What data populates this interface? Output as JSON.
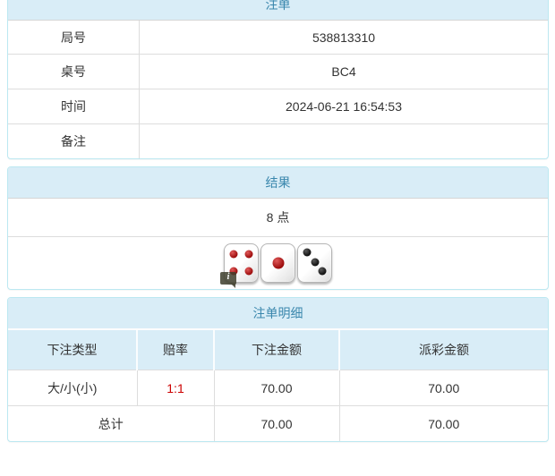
{
  "colors": {
    "heading_bg": "#d9edf7",
    "heading_text": "#3a87ad",
    "panel_border": "#bce8f1",
    "row_divider": "#dddddd",
    "odds_red": "#cc0000",
    "body_text": "#333333"
  },
  "panels": {
    "bet": {
      "title": "注单",
      "rows": [
        {
          "label": "局号",
          "value": "538813310"
        },
        {
          "label": "桌号",
          "value": "BC4"
        },
        {
          "label": "时间",
          "value": "2024-06-21 16:54:53"
        },
        {
          "label": "备注",
          "value": ""
        }
      ]
    },
    "result": {
      "title": "结果",
      "points": "8 点",
      "dice": [
        {
          "value": 4,
          "color": "red"
        },
        {
          "value": 1,
          "color": "red"
        },
        {
          "value": 3,
          "color": "black"
        }
      ],
      "info_icon_label": "i"
    },
    "details": {
      "title": "注单明细",
      "columns": [
        "下注类型",
        "赔率",
        "下注金额",
        "派彩金额"
      ],
      "rows": [
        {
          "bet_type": "大/小(小)",
          "odds": "1:1",
          "bet_amount": "70.00",
          "payout_amount": "70.00"
        }
      ],
      "total": {
        "label": "总计",
        "bet_amount": "70.00",
        "payout_amount": "70.00"
      }
    }
  }
}
